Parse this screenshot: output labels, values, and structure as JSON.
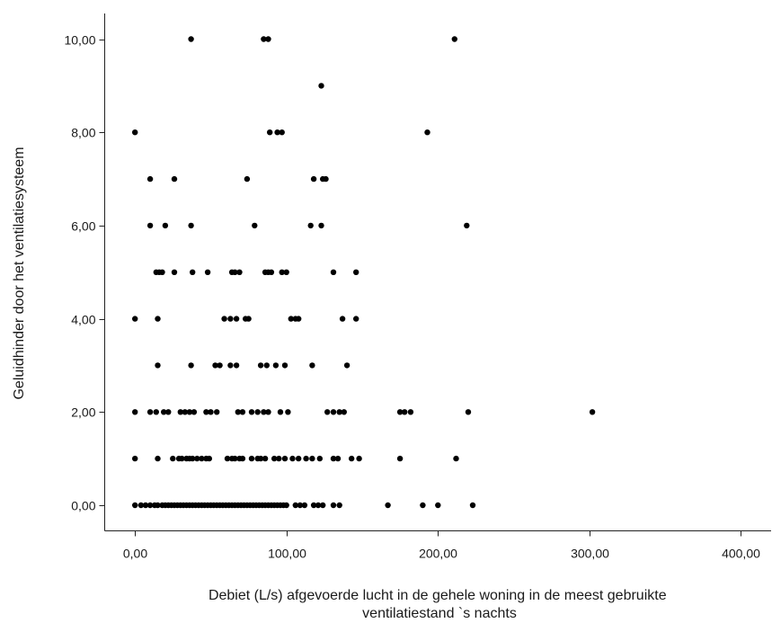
{
  "chart_data": {
    "type": "scatter",
    "xlabel": "Debiet (L/s) afgevoerde lucht in de gehele woning in de meest gebruikte ventilatiestand `s nachts",
    "xlabel_lines": [
      "Debiet (L/s) afgevoerde lucht in de gehele woning in de meest gebruikte",
      "ventilatiestand `s nachts"
    ],
    "ylabel": "Geluidhinder door het ventilatiesysteem",
    "xlim": [
      -20,
      420
    ],
    "ylim": [
      -0.55,
      10.55
    ],
    "x_ticks": [
      0,
      100,
      200,
      300,
      400
    ],
    "x_tick_labels": [
      "0,00",
      "100,00",
      "200,00",
      "300,00",
      "400,00"
    ],
    "y_ticks": [
      0,
      2,
      4,
      6,
      8,
      10
    ],
    "y_tick_labels": [
      "0,00",
      "2,00",
      "4,00",
      "6,00",
      "8,00",
      "10,00"
    ],
    "marker_color": "#000000",
    "points": [
      [
        37,
        10
      ],
      [
        85,
        10
      ],
      [
        88,
        10
      ],
      [
        211,
        10
      ],
      [
        123,
        9
      ],
      [
        0,
        8
      ],
      [
        89,
        8
      ],
      [
        94,
        8
      ],
      [
        97,
        8
      ],
      [
        193,
        8
      ],
      [
        10,
        7
      ],
      [
        26,
        7
      ],
      [
        74,
        7
      ],
      [
        118,
        7
      ],
      [
        124,
        7
      ],
      [
        126,
        7
      ],
      [
        10,
        6
      ],
      [
        20,
        6
      ],
      [
        37,
        6
      ],
      [
        79,
        6
      ],
      [
        116,
        6
      ],
      [
        123,
        6
      ],
      [
        219,
        6
      ],
      [
        14,
        5
      ],
      [
        16,
        5
      ],
      [
        18,
        5
      ],
      [
        26,
        5
      ],
      [
        38,
        5
      ],
      [
        48,
        5
      ],
      [
        64,
        5
      ],
      [
        66,
        5
      ],
      [
        69,
        5
      ],
      [
        86,
        5
      ],
      [
        88,
        5
      ],
      [
        90,
        5
      ],
      [
        97,
        5
      ],
      [
        100,
        5
      ],
      [
        131,
        5
      ],
      [
        146,
        5
      ],
      [
        0,
        4
      ],
      [
        15,
        4
      ],
      [
        59,
        4
      ],
      [
        63,
        4
      ],
      [
        67,
        4
      ],
      [
        73,
        4
      ],
      [
        75,
        4
      ],
      [
        103,
        4
      ],
      [
        106,
        4
      ],
      [
        108,
        4
      ],
      [
        137,
        4
      ],
      [
        146,
        4
      ],
      [
        15,
        3
      ],
      [
        37,
        3
      ],
      [
        53,
        3
      ],
      [
        56,
        3
      ],
      [
        63,
        3
      ],
      [
        67,
        3
      ],
      [
        83,
        3
      ],
      [
        87,
        3
      ],
      [
        93,
        3
      ],
      [
        99,
        3
      ],
      [
        117,
        3
      ],
      [
        140,
        3
      ],
      [
        0,
        2
      ],
      [
        10,
        2
      ],
      [
        14,
        2
      ],
      [
        19,
        2
      ],
      [
        22,
        2
      ],
      [
        30,
        2
      ],
      [
        33,
        2
      ],
      [
        36,
        2
      ],
      [
        39,
        2
      ],
      [
        47,
        2
      ],
      [
        50,
        2
      ],
      [
        54,
        2
      ],
      [
        68,
        2
      ],
      [
        71,
        2
      ],
      [
        77,
        2
      ],
      [
        81,
        2
      ],
      [
        85,
        2
      ],
      [
        88,
        2
      ],
      [
        96,
        2
      ],
      [
        101,
        2
      ],
      [
        127,
        2
      ],
      [
        131,
        2
      ],
      [
        135,
        2
      ],
      [
        138,
        2
      ],
      [
        175,
        2
      ],
      [
        178,
        2
      ],
      [
        182,
        2
      ],
      [
        220,
        2
      ],
      [
        302,
        2
      ],
      [
        0,
        1
      ],
      [
        15,
        1
      ],
      [
        25,
        1
      ],
      [
        29,
        1
      ],
      [
        31,
        1
      ],
      [
        34,
        1
      ],
      [
        36,
        1
      ],
      [
        38,
        1
      ],
      [
        41,
        1
      ],
      [
        44,
        1
      ],
      [
        47,
        1
      ],
      [
        49,
        1
      ],
      [
        61,
        1
      ],
      [
        64,
        1
      ],
      [
        66,
        1
      ],
      [
        69,
        1
      ],
      [
        71,
        1
      ],
      [
        77,
        1
      ],
      [
        81,
        1
      ],
      [
        83,
        1
      ],
      [
        86,
        1
      ],
      [
        92,
        1
      ],
      [
        95,
        1
      ],
      [
        99,
        1
      ],
      [
        104,
        1
      ],
      [
        108,
        1
      ],
      [
        113,
        1
      ],
      [
        117,
        1
      ],
      [
        122,
        1
      ],
      [
        131,
        1
      ],
      [
        134,
        1
      ],
      [
        143,
        1
      ],
      [
        148,
        1
      ],
      [
        175,
        1
      ],
      [
        212,
        1
      ],
      [
        0,
        0
      ],
      [
        4,
        0
      ],
      [
        7,
        0
      ],
      [
        10,
        0
      ],
      [
        13,
        0
      ],
      [
        15,
        0
      ],
      [
        18,
        0
      ],
      [
        20,
        0
      ],
      [
        22,
        0
      ],
      [
        24,
        0
      ],
      [
        26,
        0
      ],
      [
        28,
        0
      ],
      [
        30,
        0
      ],
      [
        32,
        0
      ],
      [
        34,
        0
      ],
      [
        36,
        0
      ],
      [
        38,
        0
      ],
      [
        40,
        0
      ],
      [
        42,
        0
      ],
      [
        44,
        0
      ],
      [
        46,
        0
      ],
      [
        48,
        0
      ],
      [
        50,
        0
      ],
      [
        52,
        0
      ],
      [
        54,
        0
      ],
      [
        56,
        0
      ],
      [
        58,
        0
      ],
      [
        60,
        0
      ],
      [
        62,
        0
      ],
      [
        64,
        0
      ],
      [
        66,
        0
      ],
      [
        68,
        0
      ],
      [
        70,
        0
      ],
      [
        72,
        0
      ],
      [
        74,
        0
      ],
      [
        76,
        0
      ],
      [
        78,
        0
      ],
      [
        80,
        0
      ],
      [
        82,
        0
      ],
      [
        84,
        0
      ],
      [
        86,
        0
      ],
      [
        88,
        0
      ],
      [
        90,
        0
      ],
      [
        92,
        0
      ],
      [
        94,
        0
      ],
      [
        96,
        0
      ],
      [
        98,
        0
      ],
      [
        100,
        0
      ],
      [
        106,
        0
      ],
      [
        109,
        0
      ],
      [
        112,
        0
      ],
      [
        118,
        0
      ],
      [
        121,
        0
      ],
      [
        124,
        0
      ],
      [
        131,
        0
      ],
      [
        135,
        0
      ],
      [
        167,
        0
      ],
      [
        190,
        0
      ],
      [
        200,
        0
      ],
      [
        223,
        0
      ]
    ]
  }
}
